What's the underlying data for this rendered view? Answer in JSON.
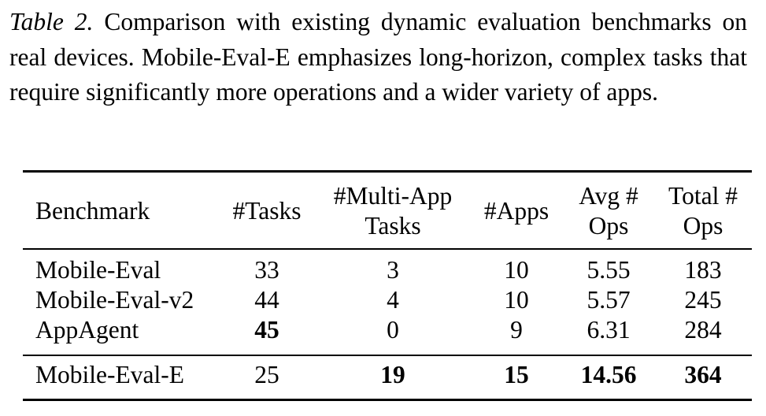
{
  "caption": {
    "label": "Table 2.",
    "text": "Comparison with existing dynamic evaluation bench­marks on real devices. Mobile-Eval-E emphasizes long-horizon, complex tasks that require significantly more operations and a wider variety of apps."
  },
  "table": {
    "headers": {
      "benchmark": "Benchmark",
      "tasks": "#Tasks",
      "multi_app_line1": "#Multi-App",
      "multi_app_line2": "Tasks",
      "apps": "#Apps",
      "avg_ops_line1": "Avg #",
      "avg_ops_line2": "Ops",
      "total_ops_line1": "Total #",
      "total_ops_line2": "Ops"
    },
    "rows": [
      {
        "benchmark": "Mobile-Eval",
        "tasks": "33",
        "multi_app": "3",
        "apps": "10",
        "avg_ops": "5.55",
        "total_ops": "183"
      },
      {
        "benchmark": "Mobile-Eval-v2",
        "tasks": "44",
        "multi_app": "4",
        "apps": "10",
        "avg_ops": "5.57",
        "total_ops": "245"
      },
      {
        "benchmark": "AppAgent",
        "tasks": "45",
        "multi_app": "0",
        "apps": "9",
        "avg_ops": "6.31",
        "total_ops": "284"
      },
      {
        "benchmark": "Mobile-Eval-E",
        "tasks": "25",
        "multi_app": "19",
        "apps": "15",
        "avg_ops": "14.56",
        "total_ops": "364"
      }
    ],
    "bold_cells": [
      "2.tasks",
      "3.multi_app",
      "3.apps",
      "3.avg_ops",
      "3.total_ops"
    ]
  }
}
